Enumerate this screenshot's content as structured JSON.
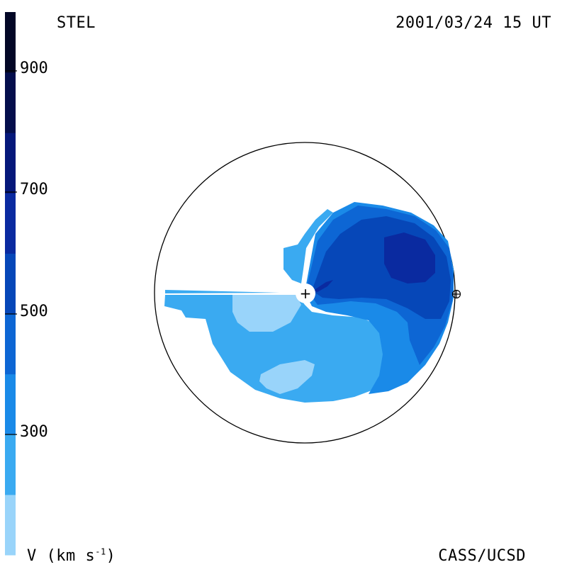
{
  "labels": {
    "top_left": "STEL",
    "top_right": "2001/03/24 15 UT",
    "bottom_right": "CASS/UCSD",
    "colorbar_unit": "V (km s",
    "colorbar_unit_exp": "-1",
    "colorbar_unit_close": ")"
  },
  "colorbar": {
    "ticks": [
      "900",
      "700",
      "500",
      "300"
    ],
    "bands": [
      "#99d4fa",
      "#3aaaf1",
      "#1a8ae8",
      "#0d66d4",
      "#0647b8",
      "#0a2aa0",
      "#05187a",
      "#040e4c",
      "#030726"
    ]
  },
  "markers": {
    "center_symbol": "+",
    "earth_symbol": "⊕"
  }
}
